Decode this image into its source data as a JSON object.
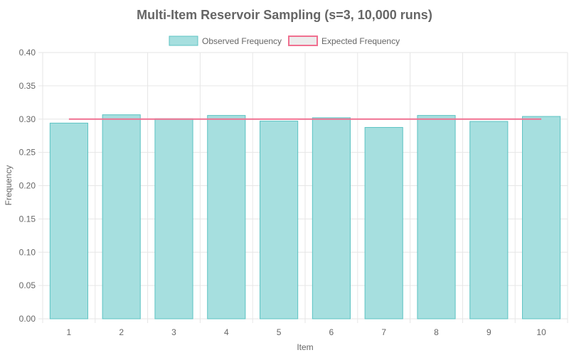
{
  "chart_data": {
    "type": "bar",
    "title": "Multi-Item Reservoir Sampling (s=3, 10,000 runs)",
    "xlabel": "Item",
    "ylabel": "Frequency",
    "categories": [
      "1",
      "2",
      "3",
      "4",
      "5",
      "6",
      "7",
      "8",
      "9",
      "10"
    ],
    "series": [
      {
        "name": "Observed Frequency",
        "kind": "bar",
        "values": [
          0.294,
          0.3065,
          0.3005,
          0.3055,
          0.297,
          0.302,
          0.2875,
          0.3055,
          0.2965,
          0.304
        ]
      },
      {
        "name": "Expected Frequency",
        "kind": "line",
        "values": [
          0.3,
          0.3,
          0.3,
          0.3,
          0.3,
          0.3,
          0.3,
          0.3,
          0.3,
          0.3
        ]
      }
    ],
    "ylim": [
      0,
      0.4
    ],
    "yticks": [
      "0.00",
      "0.05",
      "0.10",
      "0.15",
      "0.20",
      "0.25",
      "0.30",
      "0.35",
      "0.40"
    ],
    "grid": true,
    "legend_position": "top",
    "colors": {
      "bar_fill": "#a6dfdf",
      "bar_border": "#5cc3c3",
      "line": "#f07090",
      "legend_line_fill": "#ececec",
      "grid": "#e6e6e6",
      "text": "#666666",
      "title": "#666666"
    }
  }
}
